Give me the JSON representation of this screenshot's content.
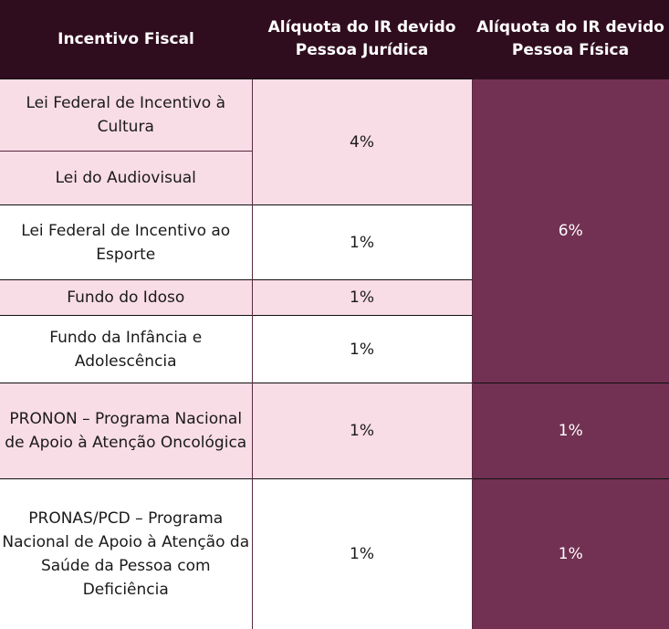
{
  "headers": {
    "incentive": "Incentivo Fiscal",
    "pj": "Alíquota do IR devido Pessoa Jurídica",
    "pf": "Alíquota do IR devido Pessoa Física"
  },
  "rows": [
    {
      "name": "Lei Federal de Incentivo à Cultura"
    },
    {
      "name": "Lei do Audiovisual"
    },
    {
      "name": "Lei Federal de Incentivo ao Esporte",
      "pj": "1%"
    },
    {
      "name": "Fundo do Idoso",
      "pj": "1%"
    },
    {
      "name": "Fundo da Infância e Adolescência",
      "pj": "1%"
    },
    {
      "name": "PRONON –  Programa Nacional de Apoio à Atenção Oncológica",
      "pj": "1%",
      "pf": "1%"
    },
    {
      "name": "PRONAS/PCD – Programa Nacional de Apoio à Atenção da Saúde da Pessoa com Deficiência",
      "pj": "1%",
      "pf": "1%"
    }
  ],
  "merged": {
    "culture_audiovisual_pj": "4%",
    "pf_first_five": "6%"
  },
  "colors": {
    "header": "#300d1e",
    "pink": "#f8dce6",
    "purple": "#723152"
  }
}
